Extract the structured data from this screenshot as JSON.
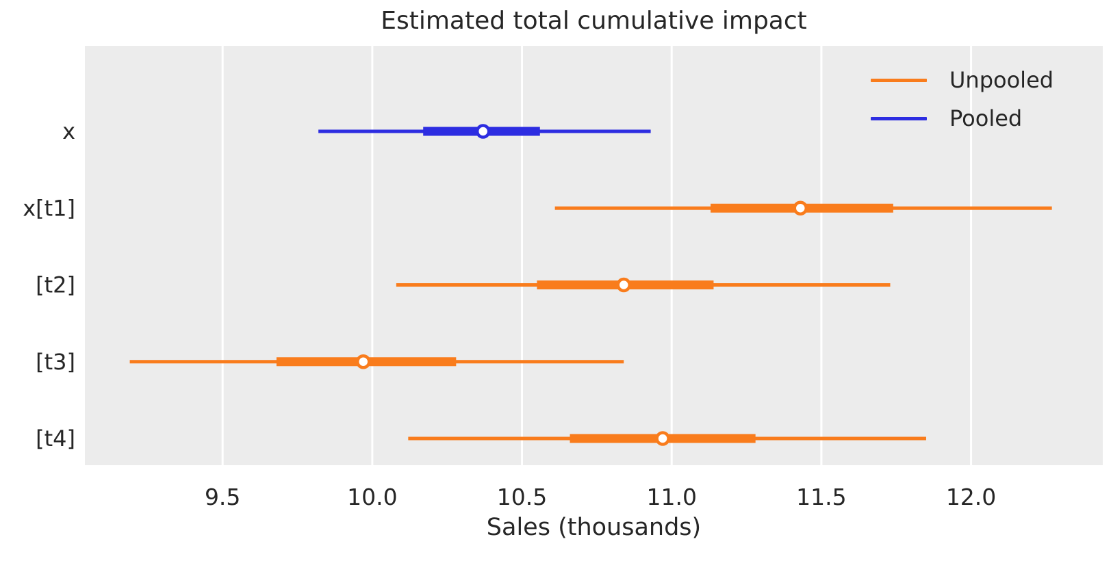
{
  "title": "Estimated total cumulative impact",
  "xlabel": "Sales (thousands)",
  "colors": {
    "unpooled": "#f97c1c",
    "pooled": "#2d2de1",
    "axes_bg": "#ececec",
    "grid": "#ffffff",
    "text": "#262626",
    "marker_fill": "#ffffff"
  },
  "legend": [
    {
      "label": "Unpooled",
      "color": "#f97c1c"
    },
    {
      "label": "Pooled",
      "color": "#2d2de1"
    }
  ],
  "chart_data": {
    "type": "forest",
    "title": "Estimated total cumulative impact",
    "xlabel": "Sales (thousands)",
    "xlim": [
      9.04,
      12.44
    ],
    "xticks": [
      9.5,
      10.0,
      10.5,
      11.0,
      11.5,
      12.0
    ],
    "grid": "vertical-white-on-gray",
    "legend_position": "upper-right",
    "rows": [
      {
        "label": "x",
        "series": "Pooled",
        "color": "#2d2de1",
        "ci_low": 9.82,
        "ci_high": 10.93,
        "hdi_low": 10.17,
        "hdi_high": 10.56,
        "median": 10.37
      },
      {
        "label": "x[t1]",
        "series": "Unpooled",
        "color": "#f97c1c",
        "ci_low": 10.61,
        "ci_high": 12.27,
        "hdi_low": 11.13,
        "hdi_high": 11.74,
        "median": 11.43
      },
      {
        "label": "[t2]",
        "series": "Unpooled",
        "color": "#f97c1c",
        "ci_low": 10.08,
        "ci_high": 11.73,
        "hdi_low": 10.55,
        "hdi_high": 11.14,
        "median": 10.84
      },
      {
        "label": "[t3]",
        "series": "Unpooled",
        "color": "#f97c1c",
        "ci_low": 9.19,
        "ci_high": 10.84,
        "hdi_low": 9.68,
        "hdi_high": 10.28,
        "median": 9.97
      },
      {
        "label": "[t4]",
        "series": "Unpooled",
        "color": "#f97c1c",
        "ci_low": 10.12,
        "ci_high": 11.85,
        "hdi_low": 10.66,
        "hdi_high": 11.28,
        "median": 10.97
      }
    ]
  }
}
